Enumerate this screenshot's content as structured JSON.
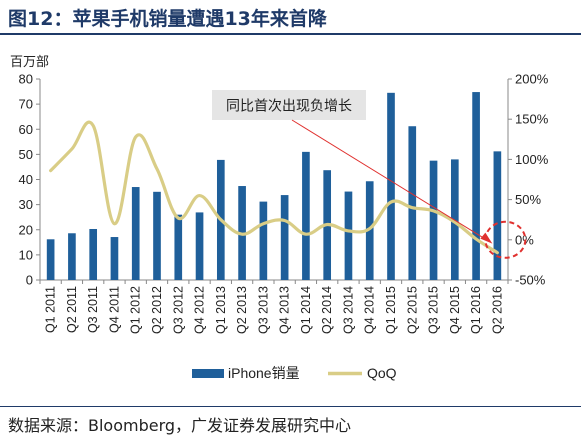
{
  "figure": {
    "title": "图12：苹果手机销量遭遇13年来首降",
    "source": "数据来源：Bloomberg，广发证券发展研究中心"
  },
  "chart_data": {
    "type": "bar+line",
    "y_left_unit": "百万部",
    "ylim_left": [
      0,
      80
    ],
    "yticks_left": [
      "0",
      "10",
      "20",
      "30",
      "40",
      "50",
      "60",
      "70",
      "80"
    ],
    "ylim_right": [
      -0.5,
      2.0
    ],
    "yticks_right": [
      "-50%",
      "0%",
      "50%",
      "100%",
      "150%",
      "200%"
    ],
    "categories": [
      "Q1 2011",
      "Q2 2011",
      "Q3 2011",
      "Q4 2011",
      "Q1 2012",
      "Q2 2012",
      "Q3 2012",
      "Q4 2012",
      "Q1 2013",
      "Q2 2013",
      "Q3 2013",
      "Q4 2013",
      "Q1 2014",
      "Q2 2014",
      "Q3 2014",
      "Q4 2014",
      "Q1 2015",
      "Q2 2015",
      "Q3 2015",
      "Q4 2015",
      "Q1 2016",
      "Q2 2016"
    ],
    "series": [
      {
        "name": "iPhone销量",
        "type": "bar",
        "axis": "left",
        "color": "#1f5f9a",
        "values": [
          16.2,
          18.6,
          20.3,
          17.1,
          37.0,
          35.1,
          26.0,
          26.9,
          47.8,
          37.4,
          31.2,
          33.8,
          51.0,
          43.7,
          35.2,
          39.3,
          74.5,
          61.2,
          47.5,
          48.0,
          74.8,
          51.2
        ]
      },
      {
        "name": "QoQ",
        "type": "line",
        "axis": "right",
        "color": "#d9cd86",
        "values": [
          0.86,
          1.13,
          1.42,
          0.2,
          1.28,
          0.88,
          0.27,
          0.55,
          0.25,
          0.07,
          0.2,
          0.24,
          0.07,
          0.19,
          0.11,
          0.14,
          0.47,
          0.4,
          0.36,
          0.22,
          0.01,
          -0.16
        ]
      }
    ],
    "annotation": {
      "text": "同比首次出现负增长",
      "target_index": 21
    },
    "legend_position": "bottom",
    "grid": false
  }
}
